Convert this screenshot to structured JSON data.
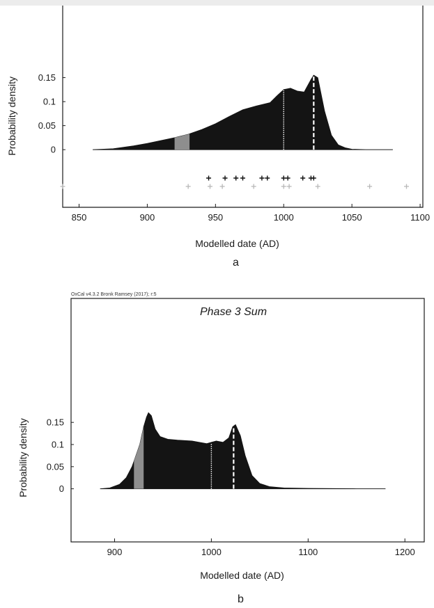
{
  "chart_data": [
    {
      "type": "area",
      "panel_label": "a",
      "credit": "",
      "title": "",
      "xlabel": "Modelled date (AD)",
      "ylabel": "Probability density",
      "xlim": [
        838,
        1102
      ],
      "ylim": [
        -0.12,
        0.3
      ],
      "xticks": [
        850,
        900,
        950,
        1000,
        1050,
        1100
      ],
      "yticks": [
        0,
        0.05,
        0.1,
        0.15
      ],
      "ytick_labels": [
        "0",
        "0.05",
        "0.1",
        "0.15"
      ],
      "baseline_range": [
        860,
        1080
      ],
      "density": {
        "x": [
          860,
          875,
          890,
          900,
          910,
          920,
          930,
          940,
          950,
          960,
          970,
          980,
          990,
          995,
          1000,
          1005,
          1010,
          1015,
          1020,
          1022,
          1025,
          1030,
          1035,
          1040,
          1045,
          1050,
          1060,
          1080
        ],
        "y": [
          0,
          0.002,
          0.008,
          0.013,
          0.019,
          0.025,
          0.032,
          0.042,
          0.054,
          0.069,
          0.083,
          0.091,
          0.098,
          0.112,
          0.125,
          0.128,
          0.122,
          0.12,
          0.146,
          0.155,
          0.15,
          0.08,
          0.03,
          0.01,
          0.004,
          0.001,
          0,
          0
        ]
      },
      "gray_band": [
        920,
        931
      ],
      "dotted_marker_x": 1000,
      "dashed_marker_x": 1022,
      "black_crosses": [
        945,
        957,
        965,
        970,
        984,
        988,
        1000,
        1003,
        1014,
        1020,
        1022
      ],
      "gray_crosses": [
        838,
        930,
        946,
        955,
        978,
        1000,
        1004,
        1025,
        1063,
        1090
      ]
    },
    {
      "type": "area",
      "panel_label": "b",
      "credit": "OxCal v4.3.2 Bronk Ramsey (2017); r:5",
      "title": "Phase 3 Sum",
      "xlabel": "Modelled date (AD)",
      "ylabel": "Probability density",
      "xlim": [
        855,
        1220
      ],
      "ylim": [
        -0.12,
        0.43
      ],
      "xticks": [
        900,
        1000,
        1100,
        1200
      ],
      "yticks": [
        0,
        0.05,
        0.1,
        0.15
      ],
      "ytick_labels": [
        "0",
        "0.05",
        "0.1",
        "0.15"
      ],
      "baseline_range": [
        885,
        1180
      ],
      "density": {
        "x": [
          885,
          895,
          905,
          912,
          918,
          922,
          926,
          930,
          933,
          935,
          938,
          942,
          947,
          955,
          965,
          980,
          995,
          1005,
          1012,
          1018,
          1022,
          1025,
          1030,
          1035,
          1042,
          1050,
          1060,
          1075,
          1100,
          1150,
          1180
        ],
        "y": [
          0,
          0.002,
          0.01,
          0.025,
          0.05,
          0.075,
          0.1,
          0.14,
          0.162,
          0.172,
          0.165,
          0.135,
          0.118,
          0.112,
          0.11,
          0.108,
          0.102,
          0.108,
          0.105,
          0.115,
          0.14,
          0.145,
          0.12,
          0.075,
          0.03,
          0.012,
          0.005,
          0.002,
          0.001,
          0,
          0
        ]
      },
      "gray_band": [
        920,
        930
      ],
      "dotted_marker_x": 1000,
      "dashed_marker_x": 1023,
      "black_crosses": [],
      "gray_crosses": []
    }
  ]
}
